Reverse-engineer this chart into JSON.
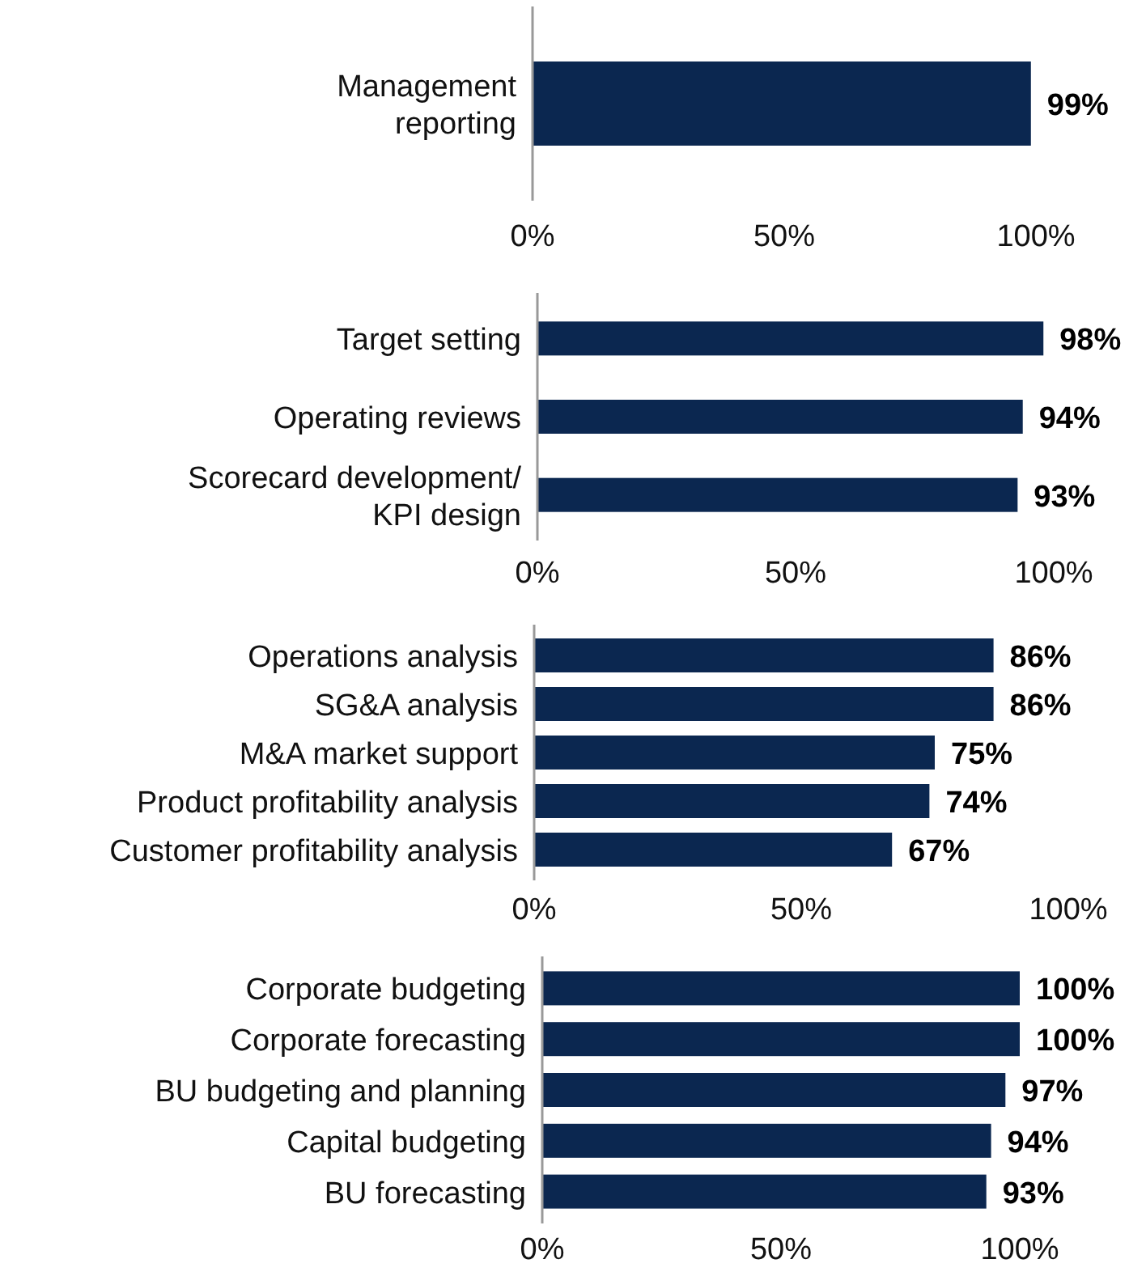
{
  "chart_data": [
    {
      "type": "bar",
      "orientation": "horizontal",
      "categories": [
        "Management\nreporting"
      ],
      "values": [
        99
      ],
      "value_labels": [
        "99%"
      ],
      "color": "#0b2750",
      "xlim": [
        0,
        100
      ],
      "xticks": [
        {
          "value": 0,
          "label": "0%"
        },
        {
          "value": 50,
          "label": "50%"
        },
        {
          "value": 100,
          "label": "100%"
        }
      ]
    },
    {
      "type": "bar",
      "orientation": "horizontal",
      "categories": [
        "Target setting",
        "Operating reviews",
        "Scorecard development/\nKPI design"
      ],
      "values": [
        98,
        94,
        93
      ],
      "value_labels": [
        "98%",
        "94%",
        "93%"
      ],
      "color": "#0b2750",
      "xlim": [
        0,
        100
      ],
      "xticks": [
        {
          "value": 0,
          "label": "0%"
        },
        {
          "value": 50,
          "label": "50%"
        },
        {
          "value": 100,
          "label": "100%"
        }
      ]
    },
    {
      "type": "bar",
      "orientation": "horizontal",
      "categories": [
        "Operations analysis",
        "SG&A analysis",
        "M&A market support",
        "Product profitability analysis",
        "Customer profitability analysis"
      ],
      "values": [
        86,
        86,
        75,
        74,
        67
      ],
      "value_labels": [
        "86%",
        "86%",
        "75%",
        "74%",
        "67%"
      ],
      "color": "#0b2750",
      "xlim": [
        0,
        100
      ],
      "xticks": [
        {
          "value": 0,
          "label": "0%"
        },
        {
          "value": 50,
          "label": "50%"
        },
        {
          "value": 100,
          "label": "100%"
        }
      ]
    },
    {
      "type": "bar",
      "orientation": "horizontal",
      "categories": [
        "Corporate budgeting",
        "Corporate forecasting",
        "BU budgeting and planning",
        "Capital budgeting",
        "BU forecasting"
      ],
      "values": [
        100,
        100,
        97,
        94,
        93
      ],
      "value_labels": [
        "100%",
        "100%",
        "97%",
        "94%",
        "93%"
      ],
      "color": "#0b2750",
      "xlim": [
        0,
        100
      ],
      "xticks": [
        {
          "value": 0,
          "label": "0%"
        },
        {
          "value": 50,
          "label": "50%"
        },
        {
          "value": 100,
          "label": "100%"
        }
      ]
    }
  ]
}
